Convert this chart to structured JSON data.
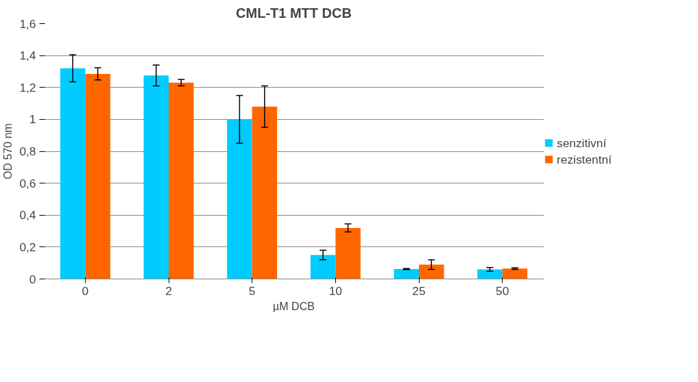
{
  "chart_data": {
    "type": "bar",
    "title": "CML-T1 MTT DCB",
    "xlabel": "µM DCB",
    "ylabel": "OD 570 nm",
    "categories": [
      "0",
      "2",
      "5",
      "10",
      "25",
      "50"
    ],
    "series": [
      {
        "name": "senzitivní",
        "color": "#00ccff",
        "values": [
          1.32,
          1.275,
          1.0,
          0.15,
          0.062,
          0.06
        ],
        "errors": [
          0.085,
          0.065,
          0.15,
          0.03,
          0.003,
          0.012
        ]
      },
      {
        "name": "rezistentní",
        "color": "#ff6600",
        "values": [
          1.285,
          1.23,
          1.08,
          0.32,
          0.09,
          0.065
        ],
        "errors": [
          0.038,
          0.02,
          0.13,
          0.025,
          0.03,
          0.005
        ]
      }
    ],
    "ylim": [
      0,
      1.6
    ],
    "yticks": [
      {
        "value": 0,
        "label": "0"
      },
      {
        "value": 0.2,
        "label": "0,2"
      },
      {
        "value": 0.4,
        "label": "0,4"
      },
      {
        "value": 0.6,
        "label": "0,6"
      },
      {
        "value": 0.8,
        "label": "0,8"
      },
      {
        "value": 1,
        "label": "1"
      },
      {
        "value": 1.2,
        "label": "1,2"
      },
      {
        "value": 1.4,
        "label": "1,4"
      },
      {
        "value": 1.6,
        "label": "1,6"
      }
    ],
    "grid": "y",
    "legend": "right"
  }
}
